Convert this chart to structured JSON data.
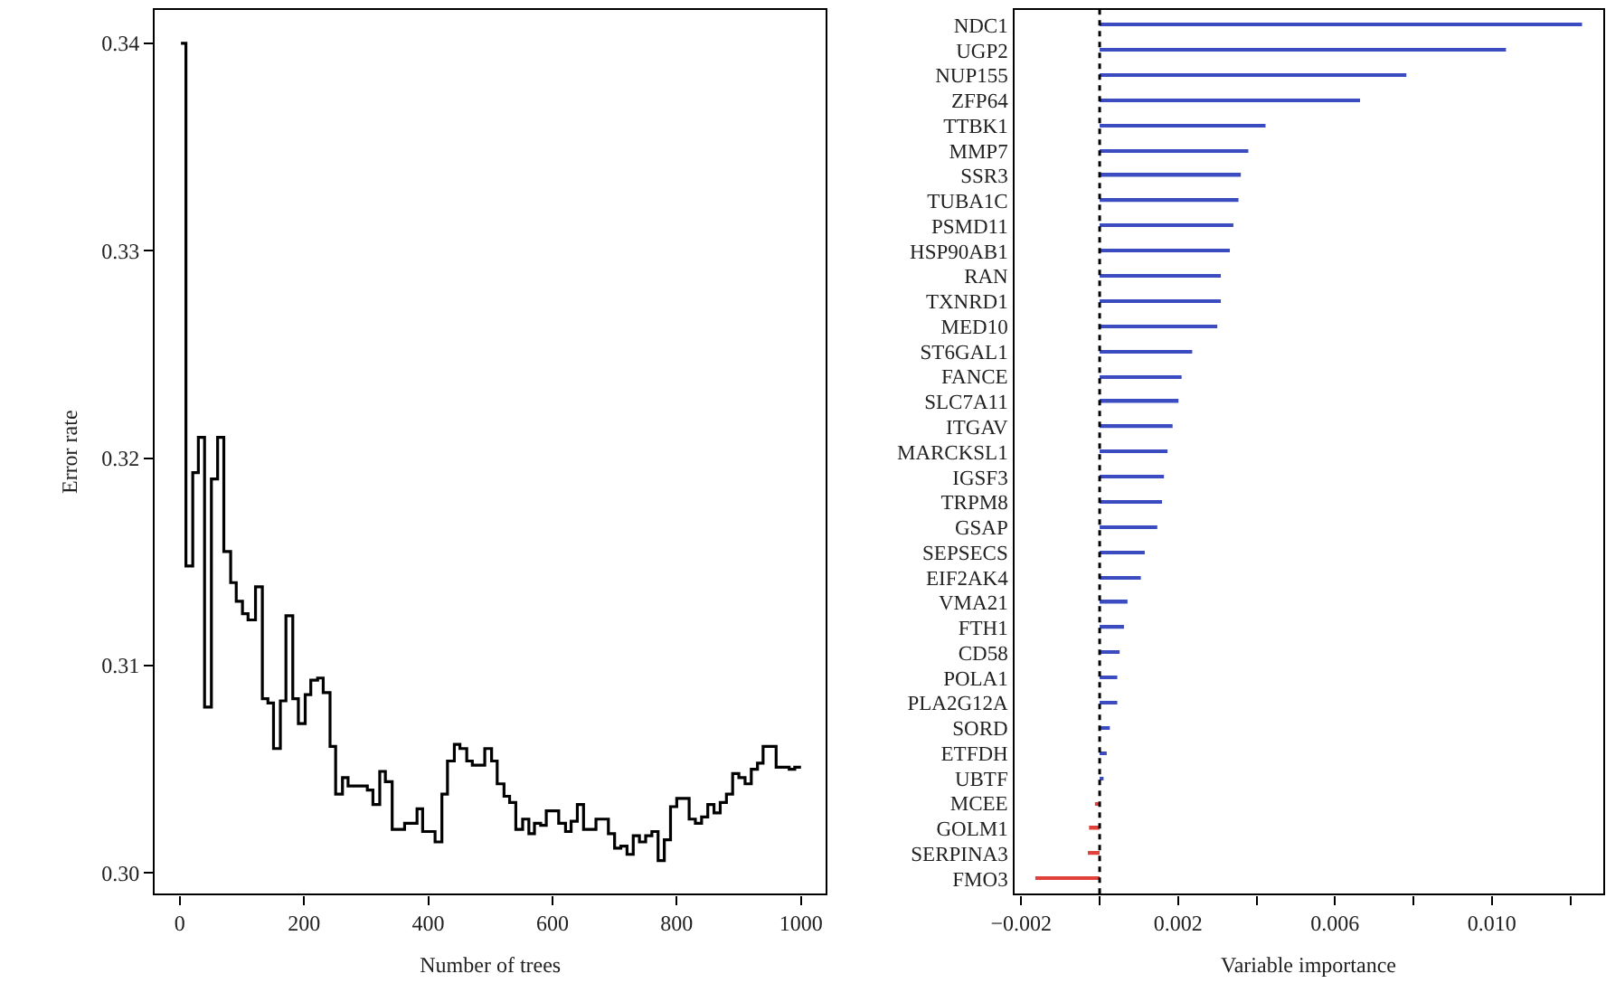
{
  "chart_data": [
    {
      "type": "step",
      "xlabel": "Number of trees",
      "ylabel": "Error rate",
      "x": [
        2,
        10,
        21,
        30,
        40,
        51,
        61,
        71,
        82,
        91,
        101,
        110,
        122,
        133,
        142,
        151,
        162,
        171,
        182,
        191,
        202,
        211,
        222,
        231,
        242,
        251,
        262,
        271,
        302,
        311,
        322,
        331,
        342,
        362,
        382,
        391,
        411,
        422,
        431,
        442,
        451,
        462,
        471,
        491,
        502,
        511,
        522,
        531,
        541,
        552,
        562,
        571,
        581,
        590,
        610,
        621,
        630,
        640,
        650,
        670,
        690,
        700,
        710,
        720,
        730,
        740,
        750,
        760,
        770,
        780,
        790,
        800,
        820,
        830,
        840,
        850,
        860,
        870,
        880,
        890,
        900,
        910,
        920,
        930,
        939,
        960,
        981,
        990,
        1000
      ],
      "series": [
        {
          "color": "#000000",
          "values": [
            0.34,
            0.3148,
            0.3193,
            0.321,
            0.308,
            0.319,
            0.321,
            0.3155,
            0.314,
            0.3131,
            0.3125,
            0.3122,
            0.3138,
            0.3084,
            0.3082,
            0.306,
            0.3083,
            0.3124,
            0.3084,
            0.3072,
            0.3086,
            0.3093,
            0.3094,
            0.3087,
            0.3061,
            0.3038,
            0.3046,
            0.3042,
            0.304,
            0.3033,
            0.3049,
            0.3044,
            0.3021,
            0.3024,
            0.3031,
            0.302,
            0.3015,
            0.3038,
            0.3054,
            0.3062,
            0.306,
            0.3054,
            0.3052,
            0.306,
            0.3054,
            0.3043,
            0.3037,
            0.3034,
            0.3021,
            0.3026,
            0.3019,
            0.3024,
            0.3023,
            0.303,
            0.3024,
            0.302,
            0.3025,
            0.3033,
            0.3021,
            0.3026,
            0.3019,
            0.3012,
            0.3013,
            0.3009,
            0.3018,
            0.3015,
            0.3018,
            0.302,
            0.3006,
            0.3016,
            0.3032,
            0.3036,
            0.3026,
            0.3024,
            0.3027,
            0.3033,
            0.3029,
            0.3034,
            0.3038,
            0.3048,
            0.3046,
            0.3043,
            0.305,
            0.3053,
            0.3061,
            0.3051,
            0.305,
            0.3051,
            0.3051
          ]
        }
      ],
      "xlim": [
        -40,
        1040
      ],
      "xticks": [
        0,
        200,
        400,
        600,
        800,
        1000
      ],
      "ylim": [
        0.299,
        0.3416
      ],
      "yticks": [
        {
          "value": 0.3,
          "label": "0.30"
        },
        {
          "value": 0.31,
          "label": "0.31"
        },
        {
          "value": 0.32,
          "label": "0.32"
        },
        {
          "value": 0.33,
          "label": "0.33"
        },
        {
          "value": 0.34,
          "label": "0.34"
        }
      ],
      "line_style": "solid",
      "marker": "none"
    },
    {
      "type": "bar",
      "orientation": "horizontal",
      "xlabel": "Variable importance",
      "categories": [
        "NDC1",
        "UGP2",
        "NUP155",
        "ZFP64",
        "TTBK1",
        "MMP7",
        "SSR3",
        "TUBA1C",
        "PSMD11",
        "HSP90AB1",
        "RAN",
        "TXNRD1",
        "MED10",
        "ST6GAL1",
        "FANCE",
        "SLC7A11",
        "ITGAV",
        "MARCKSL1",
        "IGSF3",
        "TRPM8",
        "GSAP",
        "SEPSECS",
        "EIF2AK4",
        "VMA21",
        "FTH1",
        "CD58",
        "POLA1",
        "PLA2G12A",
        "SORD",
        "ETFDH",
        "UBTF",
        "MCEE",
        "GOLM1",
        "SERPINA3",
        "FMO3"
      ],
      "values": [
        0.0123,
        0.01036,
        0.00782,
        0.00664,
        0.00423,
        0.00379,
        0.0036,
        0.00354,
        0.00341,
        0.00332,
        0.00309,
        0.00309,
        0.003,
        0.00236,
        0.00209,
        0.00201,
        0.00186,
        0.00173,
        0.00164,
        0.00159,
        0.00147,
        0.00115,
        0.00105,
        0.00071,
        0.00062,
        0.00051,
        0.00045,
        0.00045,
        0.00026,
        0.00018,
        0.0001,
        -0.00012,
        -0.00027,
        -0.0003,
        -0.00164
      ],
      "colors": [
        "#3b4cc0",
        "#3b4cc0",
        "#3b4cc0",
        "#3b4cc0",
        "#3b4cc0",
        "#3b4cc0",
        "#3b4cc0",
        "#3b4cc0",
        "#3b4cc0",
        "#3b4cc0",
        "#3b4cc0",
        "#3b4cc0",
        "#3b4cc0",
        "#3b4cc0",
        "#3b4cc0",
        "#3b4cc0",
        "#3b4cc0",
        "#3b4cc0",
        "#3b4cc0",
        "#3b4cc0",
        "#3b4cc0",
        "#3b4cc0",
        "#3b4cc0",
        "#3b4cc0",
        "#3b4cc0",
        "#3b4cc0",
        "#3b4cc0",
        "#3b4cc0",
        "#3b4cc0",
        "#3b4cc0",
        "#3b4cc0",
        "#e0413a",
        "#e0413a",
        "#e0413a",
        "#e0413a"
      ],
      "xlim": [
        -0.00218,
        0.01283
      ],
      "xticks": [
        {
          "value": -0.002,
          "label": "−0.002"
        },
        {
          "value": 0,
          "label": null
        },
        {
          "value": 0.002,
          "label": "0.002"
        },
        {
          "value": 0.004,
          "label": null
        },
        {
          "value": 0.006,
          "label": "0.006"
        },
        {
          "value": 0.008,
          "label": null
        },
        {
          "value": 0.01,
          "label": "0.010"
        },
        {
          "value": 0.012,
          "label": null
        }
      ],
      "ref_lines": [
        {
          "axis": "x",
          "value": 0,
          "color": "#000000",
          "line_style": "dotted"
        }
      ]
    }
  ]
}
